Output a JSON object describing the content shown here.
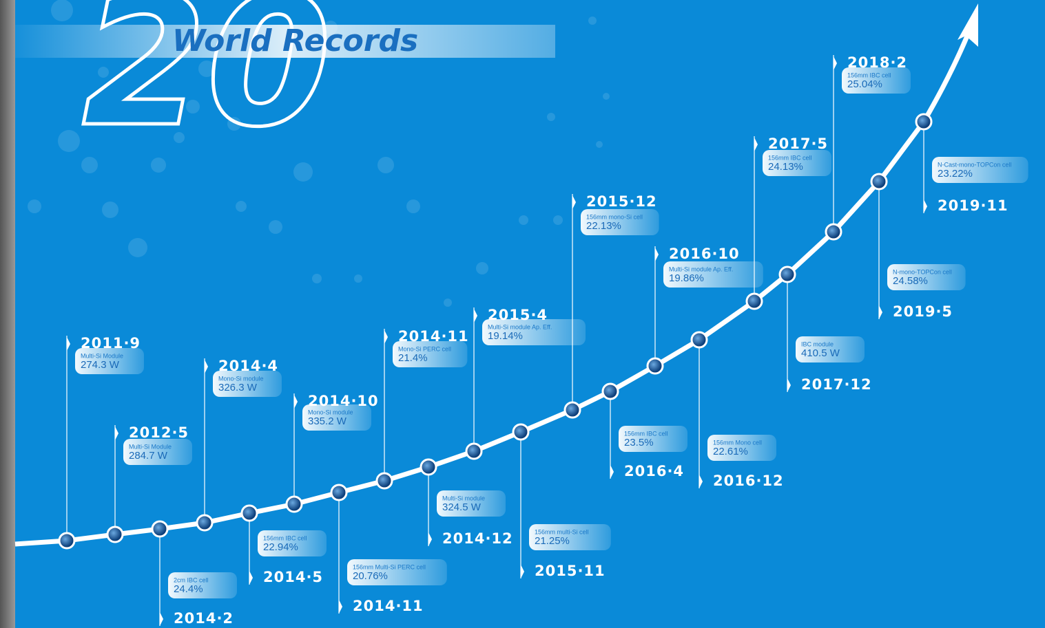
{
  "badge": "20",
  "title": "World Records",
  "records": [
    {
      "date": "2011·9",
      "label": "Multi-Si Module",
      "value": "274.3 W"
    },
    {
      "date": "2012·5",
      "label": "Multi-Si Module",
      "value": "284.7 W"
    },
    {
      "date": "2014·2",
      "label": "2cm IBC cell",
      "value": "24.4%"
    },
    {
      "date": "2014·4",
      "label": "Mono-Si module",
      "value": "326.3 W"
    },
    {
      "date": "2014·5",
      "label": "156mm IBC cell",
      "value": "22.94%"
    },
    {
      "date": "2014·10",
      "label": "Mono-Si module",
      "value": "335.2 W"
    },
    {
      "date": "2014·11",
      "label": "156mm Multi-Si PERC cell",
      "value": "20.76%"
    },
    {
      "date": "2014·11",
      "label": "Mono-Si PERC cell",
      "value": "21.4%"
    },
    {
      "date": "2014·12",
      "label": "Multi-Si module",
      "value": "324.5 W"
    },
    {
      "date": "2015·4",
      "label": "Multi-Si module  Ap. Eff.",
      "value": "19.14%"
    },
    {
      "date": "2015·11",
      "label": "156mm multi-Si cell",
      "value": "21.25%"
    },
    {
      "date": "2015·12",
      "label": "156mm mono-Si cell",
      "value": "22.13%"
    },
    {
      "date": "2016·4",
      "label": "156mm IBC cell",
      "value": "23.5%"
    },
    {
      "date": "2016·10",
      "label": "Multi-Si module Ap. Eff.",
      "value": "19.86%"
    },
    {
      "date": "2016·12",
      "label": "156mm Mono cell",
      "value": "22.61%"
    },
    {
      "date": "2017·5",
      "label": "156mm IBC cell",
      "value": "24.13%"
    },
    {
      "date": "2017·12",
      "label": "IBC module",
      "value": "410.5 W"
    },
    {
      "date": "2018·2",
      "label": "156mm IBC cell",
      "value": "25.04%"
    },
    {
      "date": "2019·5",
      "label": "N-mono-TOPCon cell",
      "value": "24.58%"
    },
    {
      "date": "2019·11",
      "label": "N-Cast-mono-TOPCon cell",
      "value": "23.22%"
    }
  ]
}
